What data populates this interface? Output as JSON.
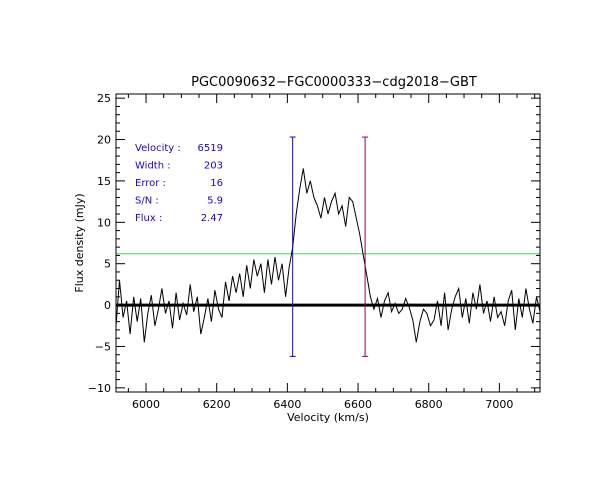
{
  "chart_data": {
    "type": "line",
    "title": "PGC0090632−FGC0000333−cdg2018−GBT",
    "xlabel": "Velocity (km/s)",
    "ylabel": "Flux density (mJy)",
    "xlim": [
      5915,
      7115
    ],
    "ylim": [
      -10.5,
      25.5
    ],
    "xticks": [
      6000,
      6200,
      6400,
      6600,
      6800,
      7000
    ],
    "xtick_labels": [
      "6000",
      "6200",
      "6400",
      "6600",
      "6800",
      "7000"
    ],
    "yticks": [
      -10,
      -5,
      0,
      5,
      10,
      15,
      20,
      25
    ],
    "ytick_labels": [
      "−10",
      "−5",
      "0",
      "5",
      "10",
      "15",
      "20",
      "25"
    ],
    "grid": false,
    "info": [
      {
        "label": "Velocity :",
        "value": "6519"
      },
      {
        "label": "Width :",
        "value": "203"
      },
      {
        "label": "Error :",
        "value": "16"
      },
      {
        "label": "S/N :",
        "value": "5.9"
      },
      {
        "label": "Flux :",
        "value": "2.47"
      }
    ],
    "spectrum": {
      "x": [
        5915,
        5925,
        5935,
        5945,
        5955,
        5965,
        5975,
        5985,
        5995,
        6005,
        6015,
        6025,
        6035,
        6045,
        6055,
        6065,
        6075,
        6085,
        6095,
        6105,
        6115,
        6125,
        6135,
        6145,
        6155,
        6165,
        6175,
        6185,
        6195,
        6205,
        6215,
        6225,
        6235,
        6245,
        6255,
        6265,
        6275,
        6285,
        6295,
        6305,
        6315,
        6325,
        6335,
        6345,
        6355,
        6365,
        6375,
        6385,
        6395,
        6405,
        6415,
        6425,
        6435,
        6445,
        6455,
        6465,
        6475,
        6485,
        6495,
        6505,
        6515,
        6525,
        6535,
        6545,
        6555,
        6565,
        6575,
        6585,
        6595,
        6605,
        6615,
        6625,
        6635,
        6645,
        6655,
        6665,
        6675,
        6685,
        6695,
        6705,
        6715,
        6725,
        6735,
        6745,
        6755,
        6765,
        6775,
        6785,
        6795,
        6805,
        6815,
        6825,
        6835,
        6845,
        6855,
        6865,
        6875,
        6885,
        6895,
        6905,
        6915,
        6925,
        6935,
        6945,
        6955,
        6965,
        6975,
        6985,
        6995,
        7005,
        7015,
        7025,
        7035,
        7045,
        7055,
        7065,
        7075,
        7085,
        7095,
        7105,
        7115
      ],
      "y": [
        -2.5,
        3.0,
        -1.5,
        0.5,
        -3.5,
        1.0,
        -2.0,
        0.8,
        -4.5,
        -1.0,
        1.2,
        -2.5,
        -0.5,
        2.0,
        -1.0,
        0.5,
        -2.8,
        1.5,
        -1.8,
        0.2,
        -1.2,
        2.5,
        -0.8,
        1.0,
        -3.5,
        -1.5,
        0.8,
        -2.0,
        1.8,
        -0.5,
        -1.5,
        2.8,
        0.5,
        3.5,
        1.5,
        3.8,
        1.0,
        4.8,
        2.0,
        5.5,
        3.5,
        5.0,
        1.5,
        5.5,
        2.5,
        5.8,
        3.0,
        5.0,
        1.0,
        4.5,
        7.0,
        11.0,
        14.0,
        16.5,
        13.5,
        15.0,
        13.0,
        12.0,
        10.5,
        13.0,
        11.0,
        12.5,
        13.5,
        11.0,
        12.0,
        9.5,
        13.0,
        12.5,
        10.5,
        8.5,
        6.0,
        3.5,
        1.0,
        -0.5,
        0.8,
        -1.5,
        0.5,
        1.5,
        -0.8,
        0.2,
        -1.0,
        -0.5,
        0.8,
        -0.3,
        -1.8,
        -4.5,
        -2.0,
        -0.5,
        -1.0,
        -2.5,
        -1.8,
        0.5,
        -2.5,
        1.5,
        -3.0,
        -0.5,
        1.0,
        2.0,
        -1.5,
        0.8,
        -2.2,
        1.5,
        -0.5,
        2.5,
        -1.0,
        0.5,
        -2.0,
        1.0,
        -1.5,
        -0.8,
        -2.5,
        0.5,
        1.8,
        -3.0,
        0.8,
        -1.5,
        2.0,
        -0.5,
        -2.2,
        1.0,
        -0.8
      ]
    },
    "series": [
      {
        "kind": "spectrum",
        "color": "#000000"
      },
      {
        "kind": "zero-line",
        "y": 0,
        "color": "#000000"
      },
      {
        "kind": "level-line",
        "y": 6.2,
        "color": "#33dd55"
      },
      {
        "kind": "marker",
        "x": 6415,
        "y_range": [
          -6.2,
          20.3
        ],
        "color": "#2200cc"
      },
      {
        "kind": "marker",
        "x": 6620,
        "y_range": [
          -6.2,
          20.3
        ],
        "color": "#880066"
      }
    ]
  }
}
